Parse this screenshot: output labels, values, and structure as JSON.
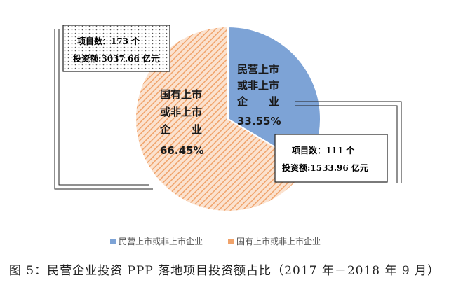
{
  "chart_data": {
    "type": "pie",
    "slices": [
      {
        "name": "民营上市或非上市企业",
        "label_lines": [
          "民营上市",
          "或非上市",
          "企　　业"
        ],
        "percent_label": "33.55%",
        "value": 33.55,
        "color": "#7da3d6"
      },
      {
        "name": "国有上市或非上市企业",
        "label_lines": [
          "国有上市",
          "或非上市",
          "企　　业"
        ],
        "percent_label": "66.45%",
        "value": 66.45,
        "color": "#f0a36b"
      }
    ],
    "callouts": [
      {
        "line1": "项目数：173 个",
        "line2": "投资额:3037.66 亿元"
      },
      {
        "line1": "项目数：111 个",
        "line2": "投资额:1533.96 亿元"
      }
    ],
    "legend": [
      "民营上市或非上市企业",
      "国有上市或非上市企业"
    ],
    "legend_position": "bottom"
  },
  "caption": "图 5：民营企业投资 PPP 落地项目投资额占比（2017 年－2018 年 9 月）"
}
